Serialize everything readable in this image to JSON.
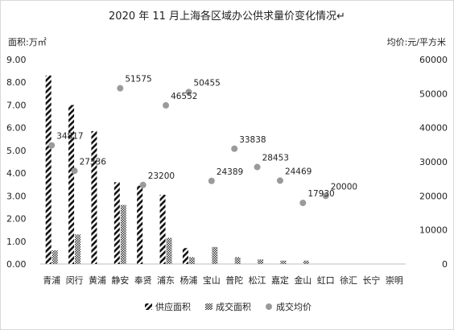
{
  "chart_data": {
    "type": "bar",
    "title": "2020 年 11 月上海各区域办公供求量价变化情况↵",
    "ylabel": "面积:万㎡",
    "y2label": "均价:元/平方米",
    "ylim": [
      0,
      9
    ],
    "y2lim": [
      0,
      60000
    ],
    "yticks": [
      "0.00",
      "1.00",
      "2.00",
      "3.00",
      "4.00",
      "5.00",
      "6.00",
      "7.00",
      "8.00",
      "9.00"
    ],
    "y2ticks": [
      "0",
      "10000",
      "20000",
      "30000",
      "40000",
      "50000",
      "60000"
    ],
    "categories": [
      "青浦",
      "闵行",
      "黄浦",
      "静安",
      "奉贤",
      "浦东",
      "杨浦",
      "宝山",
      "普陀",
      "松江",
      "嘉定",
      "金山",
      "虹口",
      "徐汇",
      "长宁",
      "崇明"
    ],
    "series": [
      {
        "name": "供应面积",
        "axis": "left",
        "style": "bar-diagonal",
        "values": [
          8.3,
          7.0,
          5.85,
          3.6,
          3.45,
          3.05,
          0.7,
          0,
          0,
          0,
          0,
          0,
          0,
          0,
          0,
          0
        ]
      },
      {
        "name": "成交面积",
        "axis": "left",
        "style": "bar-crosshatch",
        "values": [
          0.6,
          1.3,
          0,
          2.6,
          0,
          1.15,
          0.3,
          0.75,
          0.3,
          0.2,
          0.15,
          0.15,
          0,
          0,
          0,
          0
        ]
      },
      {
        "name": "成交均价",
        "axis": "right",
        "style": "dot",
        "color": "#9a9a9a",
        "values": [
          34817,
          27336,
          null,
          51575,
          23200,
          46552,
          50455,
          24389,
          33838,
          28453,
          24469,
          17930,
          20000,
          null,
          null,
          null
        ],
        "labels": [
          "34817",
          "27336",
          "",
          "51575",
          "23200",
          "46552",
          "50455",
          "24389",
          "33838",
          "28453",
          "24469",
          "17930",
          "20000",
          "",
          "",
          ""
        ]
      }
    ],
    "legend_position": "bottom",
    "grid": false
  }
}
